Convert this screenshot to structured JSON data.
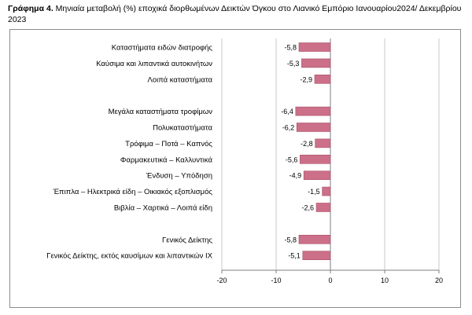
{
  "caption": {
    "prefix": "Γράφημα 4.",
    "text": "Μηνιαία μεταβολή (%) εποχικά διορθωμένων Δεικτών Όγκου στο Λιανικό Εμπόριο Ιανουαρίου2024/ Δεκεμβρίου 2023"
  },
  "colors": {
    "bar": "#cc6f88",
    "bar_edge": "#a8506a",
    "grid": "#c8c8c8",
    "axis": "#7f7f7f"
  },
  "chart_data": {
    "type": "bar",
    "orientation": "horizontal",
    "title": "",
    "xlabel": "",
    "ylabel": "",
    "xlim": [
      -20,
      20
    ],
    "xticks": [
      -20,
      -10,
      0,
      10,
      20
    ],
    "grid": true,
    "categories": [
      "Καταστήματα ειδών διατροφής",
      "Καύσιμα και λιπαντικά αυτοκινήτων",
      "Λοιπά καταστήματα",
      "",
      "Μεγάλα καταστήματα τροφίμων",
      "Πολυκαταστήματα",
      "Τρόφιμα – Ποτά – Καπνός",
      "Φαρμακευτικά – Καλλυντικά",
      "Ένδυση – Υπόδηση",
      "Έπιπλα – Ηλεκτρικά είδη – Οικιακός εξοπλισμός",
      "Βιβλία – Χαρτικά – Λοιπά είδη",
      "",
      "Γενικός Δείκτης",
      "Γενικός Δείκτης, εκτός καυσίμων και λιπαντικών ΙΧ"
    ],
    "values": [
      -5.8,
      -5.3,
      -2.9,
      null,
      -6.4,
      -6.2,
      -2.8,
      -5.6,
      -4.9,
      -1.5,
      -2.6,
      null,
      -5.8,
      -5.1
    ],
    "value_labels": [
      "-5,8",
      "-5,3",
      "-2,9",
      "",
      "-6,4",
      "-6,2",
      "-2,8",
      "-5,6",
      "-4,9",
      "-1,5",
      "-2,6",
      "",
      "-5,8",
      "-5,1"
    ],
    "tick_labels": [
      "-20",
      "-10",
      "0",
      "10",
      "20"
    ]
  }
}
